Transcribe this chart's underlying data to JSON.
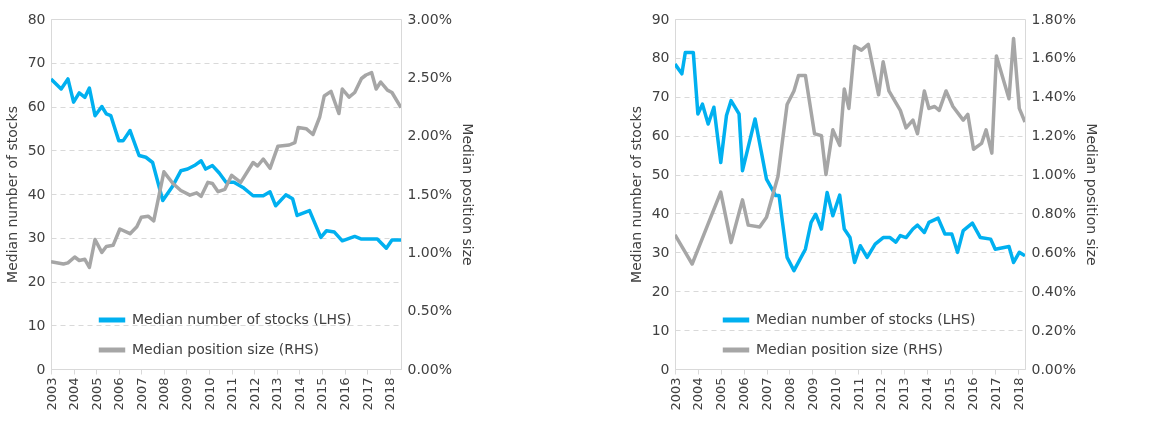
{
  "chart_data": [
    {
      "type": "line",
      "ylabel": "Median number of stocks",
      "y2label": "Median position size",
      "xlim": [
        2003,
        2018.5
      ],
      "xticks": [
        2003,
        2004,
        2005,
        2006,
        2007,
        2008,
        2009,
        2010,
        2011,
        2012,
        2013,
        2014,
        2015,
        2016,
        2017,
        2018
      ],
      "ylim": [
        0,
        80
      ],
      "yticks": [
        0,
        10,
        20,
        30,
        40,
        50,
        60,
        70,
        80
      ],
      "y2lim": [
        0,
        3
      ],
      "y2ticks": [
        {
          "value": 0,
          "label": "0.00%"
        },
        {
          "value": 0.5,
          "label": "0.50%"
        },
        {
          "value": 1,
          "label": "1.00%"
        },
        {
          "value": 1.5,
          "label": "1.50%"
        },
        {
          "value": 2,
          "label": "2.00%"
        },
        {
          "value": 2.5,
          "label": "2.50%"
        },
        {
          "value": 3,
          "label": "3.00%"
        }
      ],
      "grid": "y",
      "legend": "bottom",
      "line_style": "solid",
      "series": [
        {
          "name": "Median number of stocks (LHS)",
          "color": "#00b0f0",
          "x": [
            2003,
            2003.45,
            2003.75,
            2004,
            2004.25,
            2004.5,
            2004.7,
            2004.95,
            2005.25,
            2005.45,
            2005.65,
            2006,
            2006.2,
            2006.5,
            2006.9,
            2007.2,
            2007.5,
            2007.95,
            2008.4,
            2008.75,
            2009.05,
            2009.35,
            2009.65,
            2009.85,
            2010.15,
            2010.45,
            2010.75,
            2011.1,
            2011.5,
            2011.95,
            2012.4,
            2012.7,
            2012.95,
            2013.4,
            2013.7,
            2013.9,
            2014.45,
            2014.95,
            2015.2,
            2015.55,
            2015.9,
            2016.45,
            2016.75,
            2017.45,
            2017.85,
            2018.1,
            2018.5
          ],
          "values": [
            66.3,
            64,
            66.3,
            61,
            63.1,
            62.1,
            64.2,
            57.9,
            60,
            58.3,
            57.9,
            52.2,
            52.2,
            54.5,
            48.8,
            48.4,
            47.2,
            38.5,
            41.9,
            45.3,
            45.7,
            46.5,
            47.6,
            45.7,
            46.5,
            44.8,
            42.7,
            42.7,
            41.5,
            39.6,
            39.6,
            40.5,
            37.3,
            39.8,
            38.9,
            35.1,
            36.2,
            30.1,
            31.6,
            31.3,
            29.3,
            30.3,
            29.7,
            29.7,
            27.6,
            29.5,
            29.5
          ]
        },
        {
          "name": "Median position size (RHS)",
          "color": "#a6a6a6",
          "axis": "y2",
          "x": [
            2003,
            2003.55,
            2003.75,
            2004.05,
            2004.25,
            2004.5,
            2004.7,
            2004.95,
            2005.25,
            2005.45,
            2005.75,
            2006.05,
            2006.5,
            2006.8,
            2007,
            2007.3,
            2007.55,
            2008,
            2008.4,
            2008.75,
            2009.15,
            2009.45,
            2009.65,
            2009.95,
            2010.15,
            2010.4,
            2010.7,
            2011,
            2011.4,
            2011.95,
            2012.15,
            2012.4,
            2012.7,
            2013.05,
            2013.55,
            2013.8,
            2013.95,
            2014.3,
            2014.6,
            2014.9,
            2015.1,
            2015.4,
            2015.75,
            2015.9,
            2016.2,
            2016.45,
            2016.75,
            2016.95,
            2017.2,
            2017.4,
            2017.6,
            2017.9,
            2018.1,
            2018.5
          ],
          "values": [
            0.92,
            0.9,
            0.91,
            0.96,
            0.93,
            0.94,
            0.87,
            1.11,
            1,
            1.05,
            1.06,
            1.2,
            1.16,
            1.22,
            1.3,
            1.31,
            1.27,
            1.69,
            1.59,
            1.53,
            1.49,
            1.51,
            1.48,
            1.6,
            1.59,
            1.52,
            1.54,
            1.66,
            1.6,
            1.77,
            1.74,
            1.8,
            1.72,
            1.91,
            1.92,
            1.94,
            2.07,
            2.06,
            2.01,
            2.16,
            2.34,
            2.38,
            2.19,
            2.4,
            2.33,
            2.37,
            2.49,
            2.52,
            2.54,
            2.4,
            2.46,
            2.39,
            2.37,
            2.24
          ]
        }
      ]
    },
    {
      "type": "line",
      "ylabel": "Median number of stocks",
      "y2label": "Median position size",
      "xlim": [
        2003,
        2018.3
      ],
      "xticks": [
        2003,
        2004,
        2005,
        2006,
        2007,
        2008,
        2009,
        2010,
        2011,
        2012,
        2013,
        2014,
        2015,
        2016,
        2017,
        2018
      ],
      "ylim": [
        0,
        90
      ],
      "yticks": [
        0,
        10,
        20,
        30,
        40,
        50,
        60,
        70,
        80,
        90
      ],
      "y2lim": [
        0,
        1.8
      ],
      "y2ticks": [
        {
          "value": 0,
          "label": "0.00%"
        },
        {
          "value": 0.2,
          "label": "0.20%"
        },
        {
          "value": 0.4,
          "label": "0.40%"
        },
        {
          "value": 0.6,
          "label": "0.60%"
        },
        {
          "value": 0.8,
          "label": "0.80%"
        },
        {
          "value": 1,
          "label": "1.00%"
        },
        {
          "value": 1.2,
          "label": "1.20%"
        },
        {
          "value": 1.4,
          "label": "1.40%"
        },
        {
          "value": 1.6,
          "label": "1.60%"
        },
        {
          "value": 1.8,
          "label": "1.80%"
        }
      ],
      "grid": "y",
      "legend": "bottom",
      "line_style": "solid",
      "series": [
        {
          "name": "Median number of stocks (LHS)",
          "color": "#00b0f0",
          "x": [
            2003,
            2003.3,
            2003.45,
            2003.8,
            2004,
            2004.2,
            2004.45,
            2004.7,
            2005,
            2005.25,
            2005.45,
            2005.8,
            2005.95,
            2006.5,
            2007,
            2007.4,
            2007.55,
            2007.7,
            2007.9,
            2008.2,
            2008.7,
            2008.95,
            2009.15,
            2009.4,
            2009.65,
            2009.9,
            2010.2,
            2010.4,
            2010.65,
            2010.85,
            2011.1,
            2011.4,
            2011.75,
            2012.1,
            2012.4,
            2012.65,
            2012.85,
            2013.1,
            2013.4,
            2013.6,
            2013.9,
            2014.1,
            2014.5,
            2014.8,
            2015.1,
            2015.35,
            2015.6,
            2016,
            2016.35,
            2016.8,
            2017,
            2017.6,
            2017.8,
            2018.05,
            2018.3
          ],
          "values": [
            78.4,
            75.9,
            81.4,
            81.4,
            65.6,
            68.1,
            63,
            67.3,
            53.1,
            65.2,
            69,
            65.6,
            51,
            64.3,
            48.8,
            44.6,
            44.6,
            37.7,
            28.7,
            25.3,
            30.8,
            37.7,
            39.8,
            36,
            45.4,
            39.4,
            44.7,
            36,
            33.8,
            27.4,
            31.7,
            28.7,
            32.1,
            33.8,
            33.8,
            32.6,
            34.3,
            33.8,
            36,
            37,
            35.1,
            37.7,
            38.8,
            34.7,
            34.7,
            30,
            35.6,
            37.5,
            33.8,
            33.4,
            30.8,
            31.5,
            27.4,
            30,
            29.1
          ]
        },
        {
          "name": "Median position size (RHS)",
          "color": "#a6a6a6",
          "axis": "y2",
          "x": [
            2003,
            2003.75,
            2005,
            2005.45,
            2005.95,
            2006.2,
            2006.7,
            2007,
            2007.5,
            2007.9,
            2008.2,
            2008.4,
            2008.7,
            2009.1,
            2009.4,
            2009.6,
            2009.9,
            2010.2,
            2010.4,
            2010.6,
            2010.85,
            2011.15,
            2011.45,
            2011.9,
            2012.1,
            2012.35,
            2012.85,
            2013.1,
            2013.4,
            2013.6,
            2013.9,
            2014.1,
            2014.35,
            2014.55,
            2014.85,
            2015.15,
            2015.6,
            2015.8,
            2016.05,
            2016.4,
            2016.6,
            2016.85,
            2017.05,
            2017.3,
            2017.6,
            2017.8,
            2018.05,
            2018.3
          ],
          "values": [
            0.69,
            0.54,
            0.91,
            0.65,
            0.87,
            0.74,
            0.73,
            0.78,
            0.99,
            1.36,
            1.43,
            1.51,
            1.51,
            1.21,
            1.2,
            1,
            1.23,
            1.15,
            1.44,
            1.34,
            1.66,
            1.64,
            1.67,
            1.41,
            1.58,
            1.43,
            1.33,
            1.24,
            1.28,
            1.21,
            1.43,
            1.34,
            1.35,
            1.33,
            1.43,
            1.35,
            1.28,
            1.31,
            1.13,
            1.16,
            1.23,
            1.11,
            1.61,
            1.51,
            1.39,
            1.7,
            1.34,
            1.27
          ]
        }
      ]
    }
  ]
}
